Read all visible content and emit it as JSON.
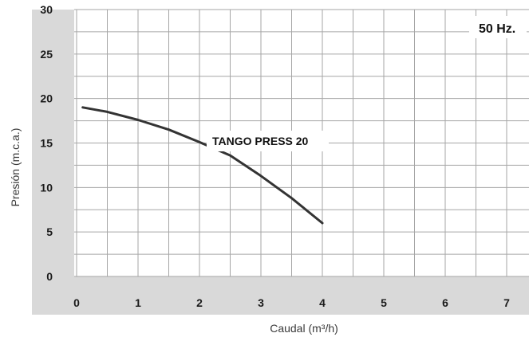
{
  "chart_data": {
    "type": "line",
    "title": "",
    "xlabel": "Caudal (m³/h)",
    "ylabel": "Presión (m.c.a.)",
    "xlim": [
      0,
      7
    ],
    "ylim": [
      0,
      30
    ],
    "x_ticks": [
      "0",
      "1",
      "2",
      "3",
      "4",
      "5",
      "6",
      "7"
    ],
    "y_ticks": [
      "0",
      "5",
      "10",
      "15",
      "20",
      "25",
      "30"
    ],
    "grid": true,
    "series": [
      {
        "name": "TANGO PRESS 20",
        "x": [
          0.1,
          0.5,
          1.0,
          1.5,
          2.0,
          2.5,
          3.0,
          3.5,
          4.0
        ],
        "y": [
          19.0,
          18.5,
          17.6,
          16.5,
          15.1,
          13.6,
          11.3,
          8.8,
          6.0
        ]
      }
    ],
    "annotations": {
      "frequency": "50 Hz.",
      "curve_label": "TANGO PRESS 20"
    },
    "colors": {
      "panel": "#d9d9d9",
      "plot_bg": "#ffffff",
      "grid": "#a6a6a6",
      "curve": "#333333"
    }
  }
}
